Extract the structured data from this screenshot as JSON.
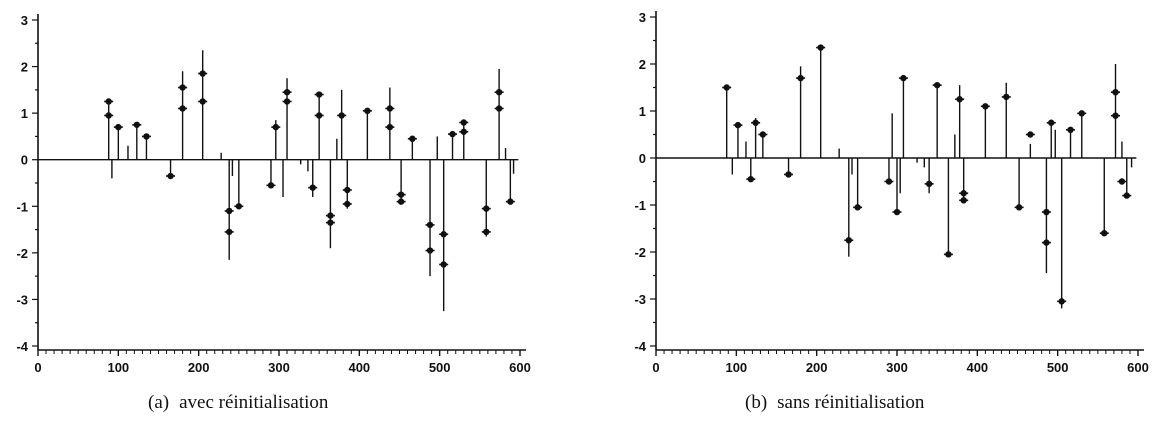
{
  "chart_data": [
    {
      "type": "stem",
      "caption_tag": "(a)",
      "caption": "avec réinitialisation",
      "xlim": [
        0,
        600
      ],
      "ylim": [
        -4,
        3
      ],
      "xticks": [
        0,
        100,
        200,
        300,
        400,
        500,
        600
      ],
      "yticks": [
        -4,
        -3,
        -2,
        -1,
        0,
        1,
        2,
        3
      ],
      "baseline": 0,
      "stems": [
        {
          "x": 88,
          "y": 1.25
        },
        {
          "x": 92,
          "y": -0.4
        },
        {
          "x": 100,
          "y": 0.7
        },
        {
          "x": 112,
          "y": 0.3
        },
        {
          "x": 123,
          "y": 0.8
        },
        {
          "x": 135,
          "y": 0.55
        },
        {
          "x": 165,
          "y": -0.35
        },
        {
          "x": 180,
          "y": 1.9
        },
        {
          "x": 205,
          "y": 2.35
        },
        {
          "x": 228,
          "y": 0.15
        },
        {
          "x": 238,
          "y": -2.15
        },
        {
          "x": 242,
          "y": -0.35
        },
        {
          "x": 250,
          "y": -1.0
        },
        {
          "x": 290,
          "y": -0.55
        },
        {
          "x": 296,
          "y": 0.85
        },
        {
          "x": 305,
          "y": -0.8
        },
        {
          "x": 310,
          "y": 1.75
        },
        {
          "x": 327,
          "y": -0.1
        },
        {
          "x": 336,
          "y": -0.25
        },
        {
          "x": 342,
          "y": -0.8
        },
        {
          "x": 350,
          "y": 1.45
        },
        {
          "x": 364,
          "y": -1.9
        },
        {
          "x": 372,
          "y": 0.45
        },
        {
          "x": 378,
          "y": 1.5
        },
        {
          "x": 385,
          "y": -1.05
        },
        {
          "x": 410,
          "y": 1.05
        },
        {
          "x": 438,
          "y": 1.55
        },
        {
          "x": 452,
          "y": -0.95
        },
        {
          "x": 466,
          "y": 0.45
        },
        {
          "x": 488,
          "y": -2.5
        },
        {
          "x": 497,
          "y": 0.5
        },
        {
          "x": 505,
          "y": -3.25
        },
        {
          "x": 516,
          "y": 0.6
        },
        {
          "x": 530,
          "y": 0.85
        },
        {
          "x": 558,
          "y": -1.65
        },
        {
          "x": 574,
          "y": 1.95
        },
        {
          "x": 582,
          "y": 0.25
        },
        {
          "x": 588,
          "y": -0.95
        },
        {
          "x": 592,
          "y": -0.3
        }
      ],
      "markers": [
        {
          "x": 88,
          "y": 1.25
        },
        {
          "x": 88,
          "y": 0.95
        },
        {
          "x": 100,
          "y": 0.7
        },
        {
          "x": 123,
          "y": 0.75
        },
        {
          "x": 135,
          "y": 0.5
        },
        {
          "x": 165,
          "y": -0.35
        },
        {
          "x": 180,
          "y": 1.55
        },
        {
          "x": 180,
          "y": 1.1
        },
        {
          "x": 205,
          "y": 1.85
        },
        {
          "x": 205,
          "y": 1.25
        },
        {
          "x": 238,
          "y": -1.1
        },
        {
          "x": 238,
          "y": -1.55
        },
        {
          "x": 250,
          "y": -1.0
        },
        {
          "x": 290,
          "y": -0.55
        },
        {
          "x": 296,
          "y": 0.7
        },
        {
          "x": 310,
          "y": 1.25
        },
        {
          "x": 310,
          "y": 1.45
        },
        {
          "x": 342,
          "y": -0.6
        },
        {
          "x": 350,
          "y": 1.4
        },
        {
          "x": 350,
          "y": 0.95
        },
        {
          "x": 364,
          "y": -1.2
        },
        {
          "x": 364,
          "y": -1.35
        },
        {
          "x": 378,
          "y": 0.95
        },
        {
          "x": 385,
          "y": -0.65
        },
        {
          "x": 385,
          "y": -0.95
        },
        {
          "x": 410,
          "y": 1.05
        },
        {
          "x": 438,
          "y": 1.1
        },
        {
          "x": 438,
          "y": 0.7
        },
        {
          "x": 452,
          "y": -0.75
        },
        {
          "x": 452,
          "y": -0.9
        },
        {
          "x": 466,
          "y": 0.45
        },
        {
          "x": 488,
          "y": -1.4
        },
        {
          "x": 488,
          "y": -1.95
        },
        {
          "x": 505,
          "y": -1.6
        },
        {
          "x": 505,
          "y": -2.25
        },
        {
          "x": 516,
          "y": 0.55
        },
        {
          "x": 530,
          "y": 0.8
        },
        {
          "x": 530,
          "y": 0.6
        },
        {
          "x": 558,
          "y": -1.05
        },
        {
          "x": 558,
          "y": -1.55
        },
        {
          "x": 574,
          "y": 1.45
        },
        {
          "x": 574,
          "y": 1.1
        },
        {
          "x": 588,
          "y": -0.9
        }
      ]
    },
    {
      "type": "stem",
      "caption_tag": "(b)",
      "caption": "sans réinitialisation",
      "xlim": [
        0,
        600
      ],
      "ylim": [
        -4,
        3
      ],
      "xticks": [
        0,
        100,
        200,
        300,
        400,
        500,
        600
      ],
      "yticks": [
        -4,
        -3,
        -2,
        -1,
        0,
        1,
        2,
        3
      ],
      "baseline": 0,
      "stems": [
        {
          "x": 88,
          "y": 1.5
        },
        {
          "x": 95,
          "y": -0.35
        },
        {
          "x": 102,
          "y": 0.75
        },
        {
          "x": 112,
          "y": 0.35
        },
        {
          "x": 118,
          "y": -0.45
        },
        {
          "x": 124,
          "y": 0.85
        },
        {
          "x": 133,
          "y": 0.55
        },
        {
          "x": 165,
          "y": -0.35
        },
        {
          "x": 180,
          "y": 1.95
        },
        {
          "x": 205,
          "y": 2.4
        },
        {
          "x": 228,
          "y": 0.2
        },
        {
          "x": 240,
          "y": -2.1
        },
        {
          "x": 244,
          "y": -0.35
        },
        {
          "x": 251,
          "y": -1.05
        },
        {
          "x": 290,
          "y": -0.5
        },
        {
          "x": 294,
          "y": 0.95
        },
        {
          "x": 300,
          "y": -1.15
        },
        {
          "x": 304,
          "y": -0.75
        },
        {
          "x": 308,
          "y": 1.75
        },
        {
          "x": 325,
          "y": -0.1
        },
        {
          "x": 334,
          "y": -0.2
        },
        {
          "x": 340,
          "y": -0.75
        },
        {
          "x": 350,
          "y": 1.6
        },
        {
          "x": 364,
          "y": -2.1
        },
        {
          "x": 372,
          "y": 0.5
        },
        {
          "x": 378,
          "y": 1.55
        },
        {
          "x": 383,
          "y": -0.9
        },
        {
          "x": 410,
          "y": 1.15
        },
        {
          "x": 436,
          "y": 1.6
        },
        {
          "x": 452,
          "y": -1.05
        },
        {
          "x": 466,
          "y": 0.3
        },
        {
          "x": 486,
          "y": -2.45
        },
        {
          "x": 492,
          "y": 0.75
        },
        {
          "x": 497,
          "y": 0.6
        },
        {
          "x": 505,
          "y": -3.2
        },
        {
          "x": 516,
          "y": 0.6
        },
        {
          "x": 530,
          "y": 1.0
        },
        {
          "x": 558,
          "y": -1.6
        },
        {
          "x": 572,
          "y": 2.0
        },
        {
          "x": 580,
          "y": 0.35
        },
        {
          "x": 586,
          "y": -0.8
        },
        {
          "x": 592,
          "y": -0.2
        }
      ],
      "markers": [
        {
          "x": 88,
          "y": 1.5
        },
        {
          "x": 102,
          "y": 0.7
        },
        {
          "x": 118,
          "y": -0.45
        },
        {
          "x": 124,
          "y": 0.75
        },
        {
          "x": 133,
          "y": 0.5
        },
        {
          "x": 165,
          "y": -0.35
        },
        {
          "x": 180,
          "y": 1.7
        },
        {
          "x": 205,
          "y": 2.35
        },
        {
          "x": 240,
          "y": -1.75
        },
        {
          "x": 251,
          "y": -1.05
        },
        {
          "x": 290,
          "y": -0.5
        },
        {
          "x": 300,
          "y": -1.15
        },
        {
          "x": 308,
          "y": 1.7
        },
        {
          "x": 340,
          "y": -0.55
        },
        {
          "x": 350,
          "y": 1.55
        },
        {
          "x": 364,
          "y": -2.05
        },
        {
          "x": 378,
          "y": 1.25
        },
        {
          "x": 383,
          "y": -0.75
        },
        {
          "x": 383,
          "y": -0.9
        },
        {
          "x": 410,
          "y": 1.1
        },
        {
          "x": 436,
          "y": 1.3
        },
        {
          "x": 452,
          "y": -1.05
        },
        {
          "x": 466,
          "y": 0.5
        },
        {
          "x": 486,
          "y": -1.15
        },
        {
          "x": 486,
          "y": -1.8
        },
        {
          "x": 492,
          "y": 0.75
        },
        {
          "x": 505,
          "y": -3.05
        },
        {
          "x": 516,
          "y": 0.6
        },
        {
          "x": 530,
          "y": 0.95
        },
        {
          "x": 558,
          "y": -1.6
        },
        {
          "x": 572,
          "y": 1.4
        },
        {
          "x": 572,
          "y": 0.9
        },
        {
          "x": 580,
          "y": -0.5
        },
        {
          "x": 586,
          "y": -0.8
        }
      ]
    }
  ]
}
